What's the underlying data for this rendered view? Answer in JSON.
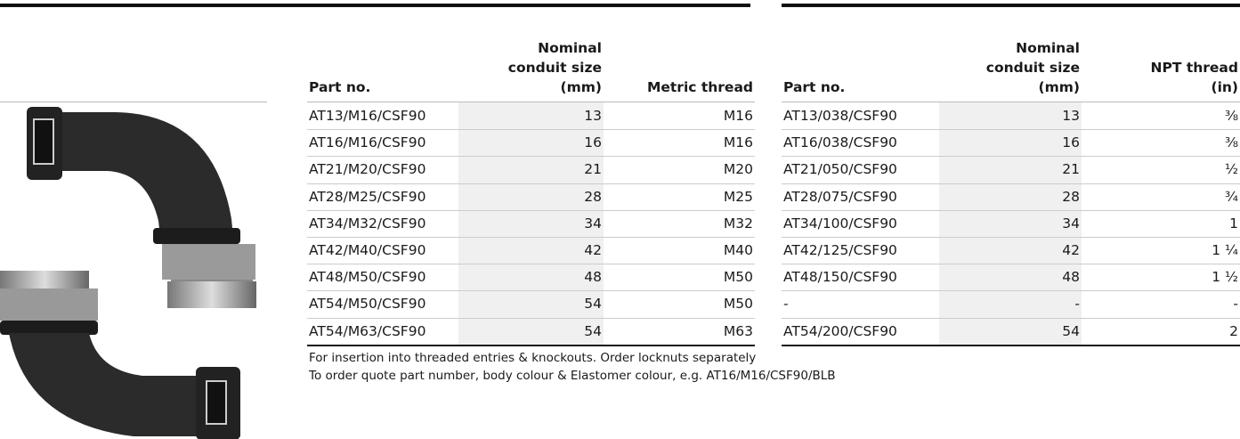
{
  "left_table": {
    "header": [
      [
        "Part no."
      ],
      [
        "Nominal",
        "conduit size",
        "(mm)"
      ],
      [
        "Metric thread"
      ]
    ],
    "rows": [
      [
        "AT13/M16/CSF90",
        13,
        "M16"
      ],
      [
        "AT16/M16/CSF90",
        16,
        "M16"
      ],
      [
        "AT21/M20/CSF90",
        21,
        "M20"
      ],
      [
        "AT28/M25/CSF90",
        28,
        "M25"
      ],
      [
        "AT34/M32/CSF90",
        34,
        "M32"
      ],
      [
        "AT42/M40/CSF90",
        42,
        "M40"
      ],
      [
        "AT48/M50/CSF90",
        48,
        "M50"
      ],
      [
        "AT54/M50/CSF90",
        54,
        "M50"
      ],
      [
        "AT54/M63/CSF90",
        54,
        "M63"
      ]
    ]
  },
  "right_table": {
    "header": [
      [
        "Part no."
      ],
      [
        "Nominal",
        "conduit size",
        "(mm)"
      ],
      [
        "NPT thread",
        "(in)"
      ]
    ],
    "rows": [
      [
        "AT13/038/CSF90",
        13,
        "⅜"
      ],
      [
        "AT16/038/CSF90",
        16,
        "⅜"
      ],
      [
        "AT21/050/CSF90",
        21,
        "½"
      ],
      [
        "AT28/075/CSF90",
        28,
        "¾"
      ],
      [
        "AT34/100/CSF90",
        34,
        "1"
      ],
      [
        "AT42/125/CSF90",
        42,
        "1 ¼"
      ],
      [
        "AT48/150/CSF90",
        48,
        "1 ½"
      ],
      [
        "-",
        "-",
        "-"
      ],
      [
        "AT54/200/CSF90",
        54,
        "2"
      ]
    ]
  },
  "notes": [
    "For insertion into threaded entries & knockouts. Order locknuts separately",
    "To order quote part number, body colour & Elastomer colour, e.g. AT16/M16/CSF90/BLB"
  ]
}
